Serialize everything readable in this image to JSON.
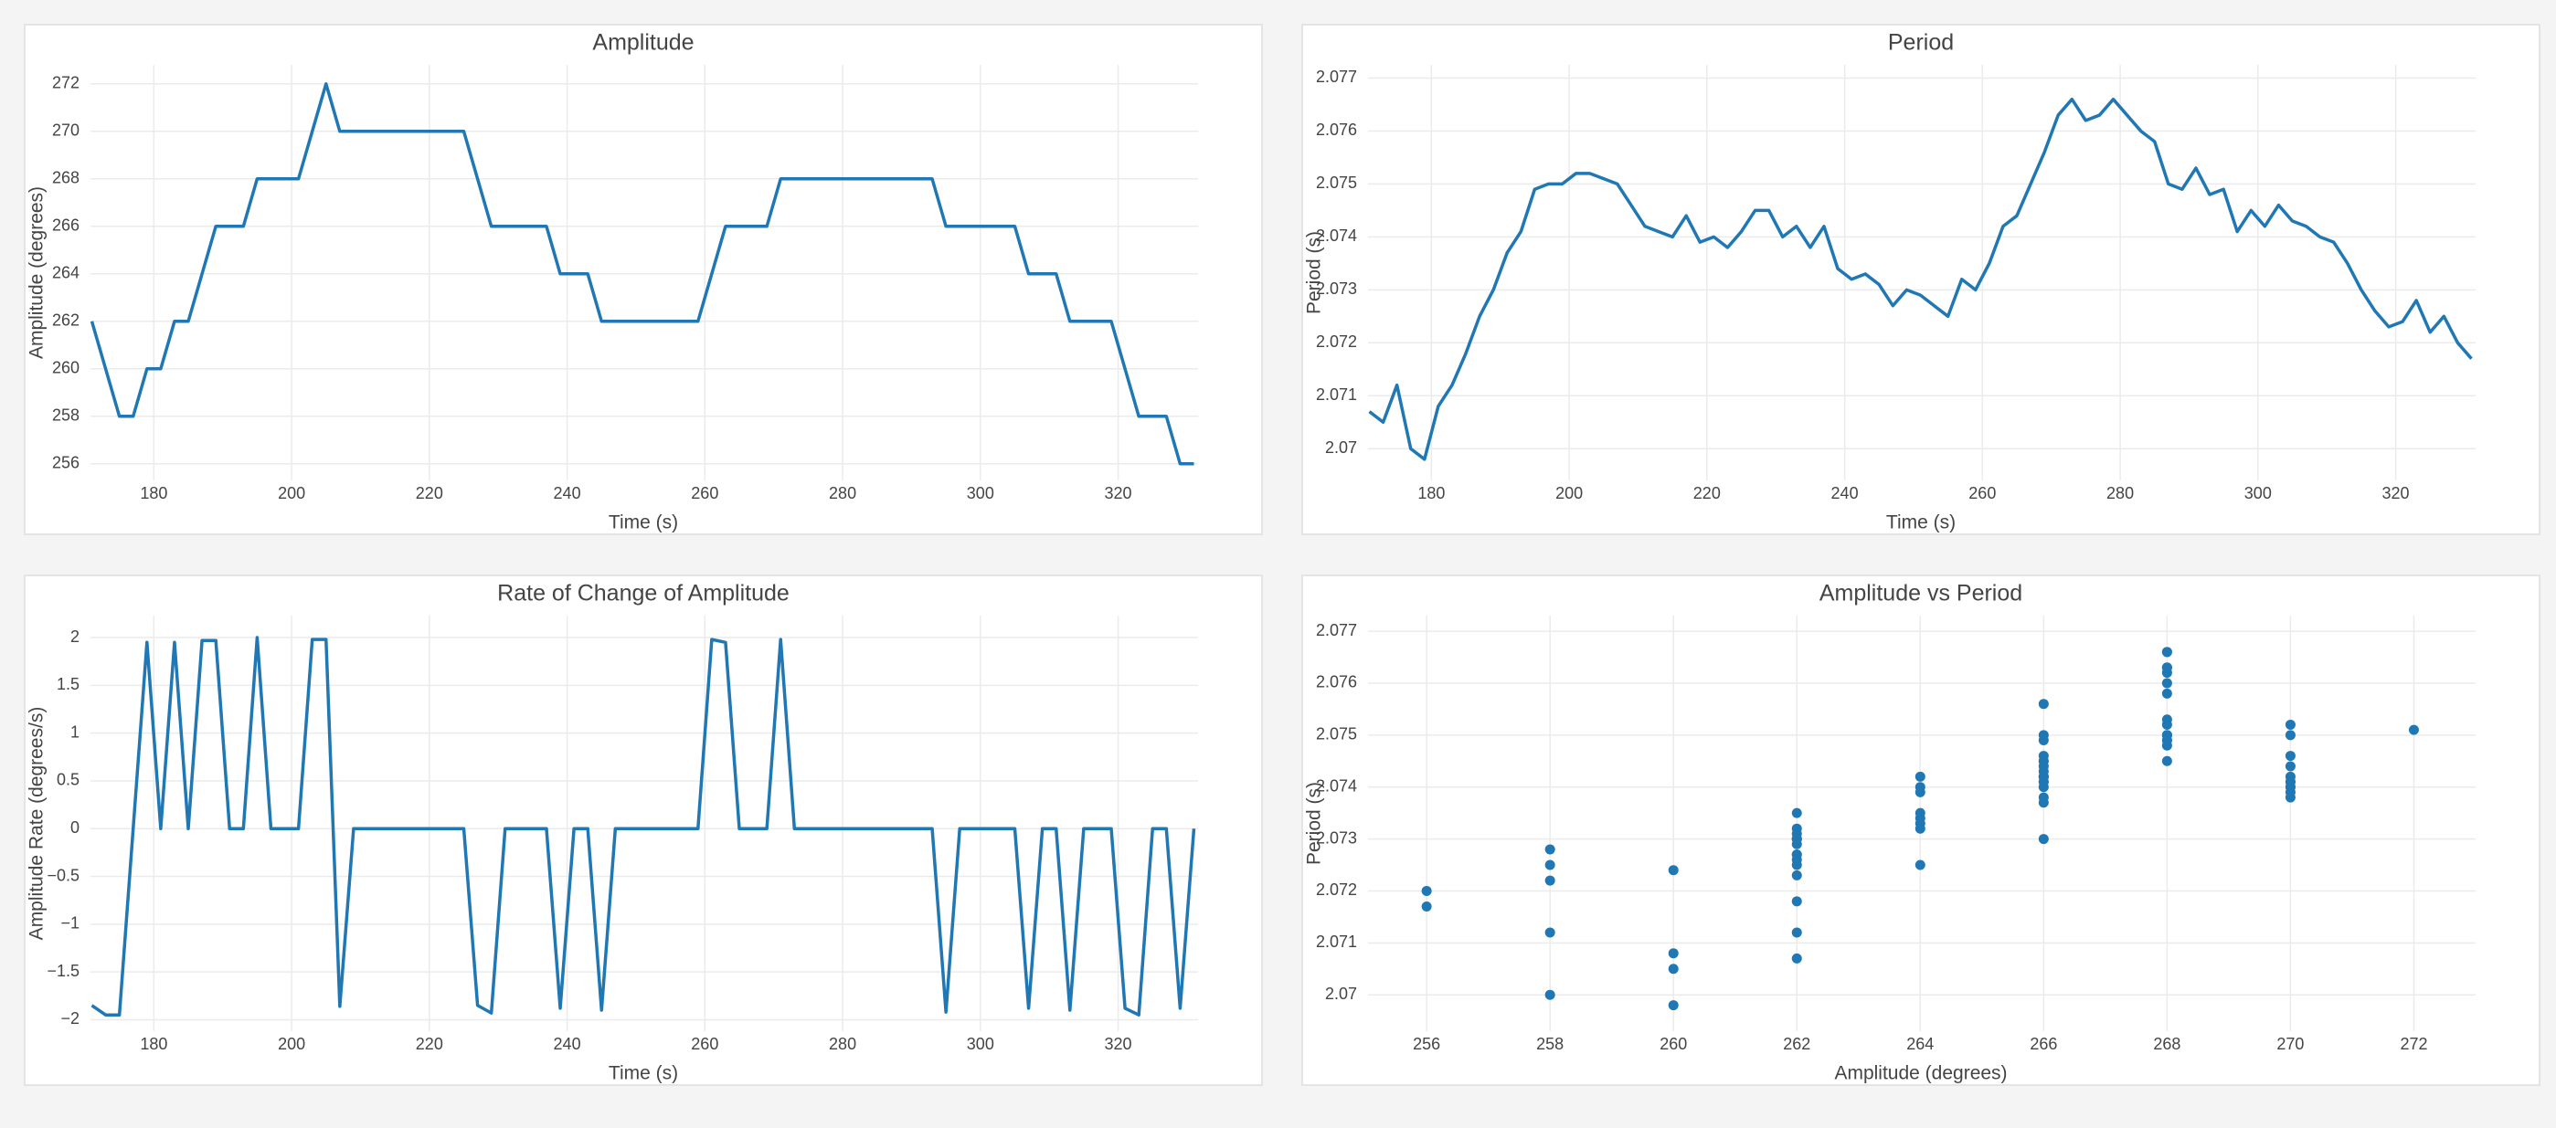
{
  "chart_data": [
    {
      "type": "line",
      "title": "Amplitude",
      "xlabel": "Time (s)",
      "ylabel": "Amplitude (degrees)",
      "color": "#1f77b4",
      "grid": true,
      "x": [
        171,
        173,
        175,
        177,
        179,
        181,
        183,
        185,
        187,
        189,
        191,
        193,
        195,
        197,
        199,
        201,
        203,
        205,
        207,
        209,
        211,
        213,
        215,
        217,
        219,
        221,
        223,
        225,
        227,
        229,
        231,
        233,
        235,
        237,
        239,
        241,
        243,
        245,
        247,
        249,
        251,
        253,
        255,
        257,
        259,
        261,
        263,
        265,
        267,
        269,
        271,
        273,
        275,
        277,
        279,
        281,
        283,
        285,
        287,
        289,
        291,
        293,
        295,
        297,
        299,
        301,
        303,
        305,
        307,
        309,
        311,
        313,
        315,
        317,
        319,
        321,
        323,
        325,
        327,
        329,
        331
      ],
      "values": [
        262,
        260,
        258,
        258,
        260,
        260,
        262,
        262,
        264,
        266,
        266,
        266,
        268,
        268,
        268,
        268,
        270,
        272,
        270,
        270,
        270,
        270,
        270,
        270,
        270,
        270,
        270,
        270,
        268,
        266,
        266,
        266,
        266,
        266,
        264,
        264,
        264,
        262,
        262,
        262,
        262,
        262,
        262,
        262,
        262,
        264,
        266,
        266,
        266,
        266,
        268,
        268,
        268,
        268,
        268,
        268,
        268,
        268,
        268,
        268,
        268,
        268,
        266,
        266,
        266,
        266,
        266,
        266,
        264,
        264,
        264,
        262,
        262,
        262,
        262,
        260,
        258,
        258,
        258,
        256,
        256
      ],
      "xlim": [
        170.8,
        331.6
      ],
      "xticks": [
        180,
        200,
        220,
        240,
        260,
        280,
        300,
        320
      ],
      "ylim": [
        255.3,
        272.8
      ],
      "yticks": [
        256,
        258,
        260,
        262,
        264,
        266,
        268,
        270,
        272
      ]
    },
    {
      "type": "line",
      "title": "Period",
      "xlabel": "Time (s)",
      "ylabel": "Period (s)",
      "color": "#1f77b4",
      "grid": true,
      "x": [
        171,
        173,
        175,
        177,
        179,
        181,
        183,
        185,
        187,
        189,
        191,
        193,
        195,
        197,
        199,
        201,
        203,
        205,
        207,
        209,
        211,
        213,
        215,
        217,
        219,
        221,
        223,
        225,
        227,
        229,
        231,
        233,
        235,
        237,
        239,
        241,
        243,
        245,
        247,
        249,
        251,
        253,
        255,
        257,
        259,
        261,
        263,
        265,
        267,
        269,
        271,
        273,
        275,
        277,
        279,
        281,
        283,
        285,
        287,
        289,
        291,
        293,
        295,
        297,
        299,
        301,
        303,
        305,
        307,
        309,
        311,
        313,
        315,
        317,
        319,
        321,
        323,
        325,
        327,
        329,
        331
      ],
      "values": [
        2.0707,
        2.0705,
        2.0712,
        2.07,
        2.0698,
        2.0708,
        2.0712,
        2.0718,
        2.0725,
        2.073,
        2.0737,
        2.0741,
        2.0749,
        2.075,
        2.075,
        2.0752,
        2.0752,
        2.0751,
        2.075,
        2.0746,
        2.0742,
        2.0741,
        2.074,
        2.0744,
        2.0739,
        2.074,
        2.0738,
        2.0741,
        2.0745,
        2.0745,
        2.074,
        2.0742,
        2.0738,
        2.0742,
        2.0734,
        2.0732,
        2.0733,
        2.0731,
        2.0727,
        2.073,
        2.0729,
        2.0727,
        2.0725,
        2.0732,
        2.073,
        2.0735,
        2.0742,
        2.0744,
        2.075,
        2.0756,
        2.0763,
        2.0766,
        2.0762,
        2.0763,
        2.0766,
        2.0763,
        2.076,
        2.0758,
        2.075,
        2.0749,
        2.0753,
        2.0748,
        2.0749,
        2.0741,
        2.0745,
        2.0742,
        2.0746,
        2.0743,
        2.0742,
        2.074,
        2.0739,
        2.0735,
        2.073,
        2.0726,
        2.0723,
        2.0724,
        2.0728,
        2.0722,
        2.0725,
        2.072,
        2.0717
      ],
      "xlim": [
        170.8,
        331.6
      ],
      "xticks": [
        180,
        200,
        220,
        240,
        260,
        280,
        300,
        320
      ],
      "ylim": [
        2.0694,
        2.07725
      ],
      "yticks": [
        2.07,
        2.071,
        2.072,
        2.073,
        2.074,
        2.075,
        2.076,
        2.077
      ]
    },
    {
      "type": "line",
      "title": "Rate of Change of Amplitude",
      "xlabel": "Time (s)",
      "ylabel": "Amplitude Rate (degrees/s)",
      "color": "#1f77b4",
      "grid": true,
      "x": [
        171,
        173,
        175,
        177,
        179,
        181,
        183,
        185,
        187,
        189,
        191,
        193,
        195,
        197,
        199,
        201,
        203,
        205,
        207,
        209,
        211,
        213,
        215,
        217,
        219,
        221,
        223,
        225,
        227,
        229,
        231,
        233,
        235,
        237,
        239,
        241,
        243,
        245,
        247,
        249,
        251,
        253,
        255,
        257,
        259,
        261,
        263,
        265,
        267,
        269,
        271,
        273,
        275,
        277,
        279,
        281,
        283,
        285,
        287,
        289,
        291,
        293,
        295,
        297,
        299,
        301,
        303,
        305,
        307,
        309,
        311,
        313,
        315,
        317,
        319,
        321,
        323,
        325,
        327,
        329,
        331
      ],
      "values": [
        -1.85,
        -1.95,
        -1.95,
        0,
        1.95,
        0,
        1.95,
        0,
        1.97,
        1.97,
        0,
        0,
        2,
        0,
        0,
        0,
        1.98,
        1.98,
        -1.86,
        0,
        0,
        0,
        0,
        0,
        0,
        0,
        0,
        0,
        -1.85,
        -1.93,
        0,
        0,
        0,
        0,
        -1.88,
        0,
        0,
        -1.9,
        0,
        0,
        0,
        0,
        0,
        0,
        0,
        1.98,
        1.95,
        0,
        0,
        0,
        1.98,
        0,
        0,
        0,
        0,
        0,
        0,
        0,
        0,
        0,
        0,
        0,
        -1.92,
        0,
        0,
        0,
        0,
        0,
        -1.88,
        0,
        0,
        -1.9,
        0,
        0,
        0,
        -1.88,
        -1.95,
        0,
        0,
        -1.88,
        0
      ],
      "xlim": [
        170.8,
        331.6
      ],
      "xticks": [
        180,
        200,
        220,
        240,
        260,
        280,
        300,
        320
      ],
      "ylim": [
        -2.12,
        2.23
      ],
      "yticks": [
        {
          "value": -2,
          "label": "−2"
        },
        {
          "value": -1.5,
          "label": "−1.5"
        },
        {
          "value": -1,
          "label": "−1"
        },
        {
          "value": -0.5,
          "label": "−0.5"
        },
        0,
        0.5,
        1,
        1.5,
        2
      ]
    },
    {
      "type": "scatter",
      "title": "Amplitude vs Period",
      "xlabel": "Amplitude (degrees)",
      "ylabel": "Period (s)",
      "color": "#1f77b4",
      "grid": true,
      "x": [
        262,
        260,
        258,
        258,
        260,
        260,
        262,
        262,
        264,
        266,
        266,
        266,
        268,
        268,
        268,
        268,
        270,
        272,
        270,
        270,
        270,
        270,
        270,
        270,
        270,
        270,
        270,
        270,
        268,
        266,
        266,
        266,
        266,
        266,
        264,
        264,
        264,
        262,
        262,
        262,
        262,
        262,
        262,
        262,
        262,
        264,
        266,
        266,
        266,
        266,
        268,
        268,
        268,
        268,
        268,
        268,
        268,
        268,
        268,
        268,
        268,
        268,
        266,
        266,
        266,
        266,
        266,
        266,
        264,
        264,
        264,
        262,
        262,
        262,
        262,
        260,
        258,
        258,
        258,
        256,
        256
      ],
      "values": [
        2.0707,
        2.0705,
        2.0712,
        2.07,
        2.0698,
        2.0708,
        2.0712,
        2.0718,
        2.0725,
        2.073,
        2.0737,
        2.0741,
        2.0749,
        2.075,
        2.075,
        2.0752,
        2.0752,
        2.0751,
        2.075,
        2.0746,
        2.0742,
        2.0741,
        2.074,
        2.0744,
        2.0739,
        2.074,
        2.0738,
        2.0741,
        2.0745,
        2.0745,
        2.074,
        2.0742,
        2.0738,
        2.0742,
        2.0734,
        2.0732,
        2.0733,
        2.0731,
        2.0727,
        2.073,
        2.0729,
        2.0727,
        2.0725,
        2.0732,
        2.073,
        2.0735,
        2.0742,
        2.0744,
        2.075,
        2.0756,
        2.0763,
        2.0766,
        2.0762,
        2.0763,
        2.0766,
        2.0763,
        2.076,
        2.0758,
        2.075,
        2.0749,
        2.0753,
        2.0748,
        2.0749,
        2.0741,
        2.0745,
        2.0742,
        2.0746,
        2.0743,
        2.0742,
        2.074,
        2.0739,
        2.0735,
        2.073,
        2.0726,
        2.0723,
        2.0724,
        2.0728,
        2.0722,
        2.0725,
        2.072,
        2.0717
      ],
      "xlim": [
        255.05,
        273.0
      ],
      "xticks": [
        256,
        258,
        260,
        262,
        264,
        266,
        268,
        270,
        272
      ],
      "ylim": [
        2.0693,
        2.0773
      ],
      "yticks": [
        2.07,
        2.071,
        2.072,
        2.073,
        2.074,
        2.075,
        2.076,
        2.077
      ]
    }
  ]
}
